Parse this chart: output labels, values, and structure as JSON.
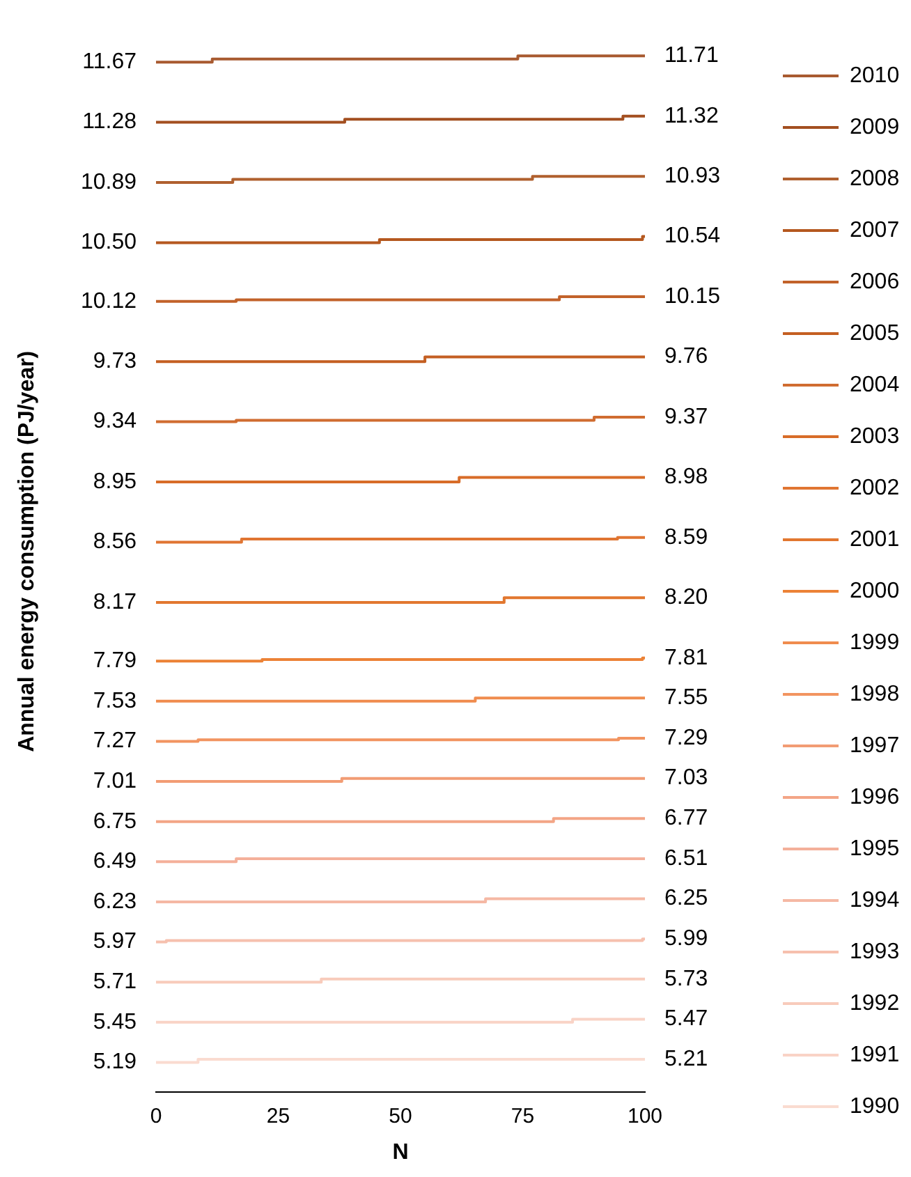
{
  "chart_data": {
    "type": "step",
    "xlabel": "N",
    "ylabel": "Annual energy consumption (PJ/year)",
    "xlim": [
      0,
      100
    ],
    "xticks": [
      0,
      25,
      50,
      75,
      100
    ],
    "tick_labels": "x",
    "grid": false,
    "legend": "right",
    "marker": "none",
    "series": [
      {
        "name": "2010",
        "color": "#a85a30",
        "x": [
          0,
          11.5,
          74,
          100
        ],
        "values": [
          11.67,
          11.69,
          11.71,
          11.71
        ],
        "value_labels": [
          "11.67",
          null,
          null,
          "11.71"
        ]
      },
      {
        "name": "2009",
        "color": "#a34f20",
        "x": [
          0,
          38.6,
          95.5,
          100
        ],
        "values": [
          11.28,
          11.3,
          11.32,
          11.32
        ],
        "value_labels": [
          "11.28",
          null,
          null,
          "11.32"
        ]
      },
      {
        "name": "2008",
        "color": "#b0602e",
        "x": [
          0,
          15.7,
          77,
          100
        ],
        "values": [
          10.89,
          10.91,
          10.93,
          10.93
        ],
        "value_labels": [
          "10.89",
          null,
          null,
          "10.93"
        ]
      },
      {
        "name": "2007",
        "color": "#b5581f",
        "x": [
          0,
          45.7,
          99.5,
          100
        ],
        "values": [
          10.5,
          10.52,
          10.54,
          10.54
        ],
        "value_labels": [
          "10.50",
          null,
          null,
          "10.54"
        ]
      },
      {
        "name": "2006",
        "color": "#c2622a",
        "x": [
          0,
          16.4,
          82.5,
          100
        ],
        "values": [
          10.12,
          10.13,
          10.15,
          10.15
        ],
        "value_labels": [
          "10.12",
          null,
          null,
          "10.15"
        ]
      },
      {
        "name": "2005",
        "color": "#c45f22",
        "x": [
          0,
          55,
          100
        ],
        "values": [
          9.73,
          9.76,
          9.76
        ],
        "value_labels": [
          "9.73",
          null,
          "9.76"
        ]
      },
      {
        "name": "2004",
        "color": "#d06c30",
        "x": [
          0,
          16.4,
          89.6,
          100
        ],
        "values": [
          9.34,
          9.35,
          9.37,
          9.37
        ],
        "value_labels": [
          "9.34",
          null,
          null,
          "9.37"
        ]
      },
      {
        "name": "2003",
        "color": "#d86c28",
        "x": [
          0,
          62,
          100
        ],
        "values": [
          8.95,
          8.98,
          8.98
        ],
        "value_labels": [
          "8.95",
          null,
          "8.98"
        ]
      },
      {
        "name": "2002",
        "color": "#e07532",
        "x": [
          0,
          17.5,
          94.4,
          100
        ],
        "values": [
          8.56,
          8.58,
          8.59,
          8.59
        ],
        "value_labels": [
          "8.56",
          null,
          null,
          "8.59"
        ]
      },
      {
        "name": "2001",
        "color": "#e2772f",
        "x": [
          0,
          71.2,
          100
        ],
        "values": [
          8.17,
          8.2,
          8.2
        ],
        "value_labels": [
          "8.17",
          null,
          "8.20"
        ]
      },
      {
        "name": "2000",
        "color": "#ec8236",
        "x": [
          0,
          21.7,
          99.5,
          100
        ],
        "values": [
          7.79,
          7.8,
          7.81,
          7.81
        ],
        "value_labels": [
          "7.79",
          null,
          null,
          "7.81"
        ]
      },
      {
        "name": "1999",
        "color": "#f08c4e",
        "x": [
          0,
          65.3,
          100
        ],
        "values": [
          7.53,
          7.55,
          7.55
        ],
        "value_labels": [
          "7.53",
          null,
          "7.55"
        ]
      },
      {
        "name": "1998",
        "color": "#f29460",
        "x": [
          0,
          8.6,
          94.6,
          100
        ],
        "values": [
          7.27,
          7.28,
          7.29,
          7.29
        ],
        "value_labels": [
          "7.27",
          null,
          null,
          "7.29"
        ]
      },
      {
        "name": "1997",
        "color": "#f29c74",
        "x": [
          0,
          38,
          100
        ],
        "values": [
          7.01,
          7.03,
          7.03
        ],
        "value_labels": [
          "7.01",
          null,
          "7.03"
        ]
      },
      {
        "name": "1996",
        "color": "#f3a586",
        "x": [
          0,
          81.3,
          100
        ],
        "values": [
          6.75,
          6.77,
          6.77
        ],
        "value_labels": [
          "6.75",
          null,
          "6.77"
        ]
      },
      {
        "name": "1995",
        "color": "#f4b09a",
        "x": [
          0,
          16.4,
          100
        ],
        "values": [
          6.49,
          6.51,
          6.51
        ],
        "value_labels": [
          "6.49",
          null,
          "6.51"
        ]
      },
      {
        "name": "1994",
        "color": "#f5b8a4",
        "x": [
          0,
          67.4,
          100
        ],
        "values": [
          6.23,
          6.25,
          6.25
        ],
        "value_labels": [
          "6.23",
          null,
          "6.25"
        ]
      },
      {
        "name": "1993",
        "color": "#f6c0ae",
        "x": [
          0,
          2.1,
          99.5,
          100
        ],
        "values": [
          5.97,
          5.98,
          5.99,
          5.99
        ],
        "value_labels": [
          "5.97",
          null,
          null,
          "5.99"
        ]
      },
      {
        "name": "1992",
        "color": "#f8cbbb",
        "x": [
          0,
          33.8,
          100
        ],
        "values": [
          5.71,
          5.73,
          5.73
        ],
        "value_labels": [
          "5.71",
          null,
          "5.73"
        ]
      },
      {
        "name": "1991",
        "color": "#f9d3c6",
        "x": [
          0,
          85.2,
          100
        ],
        "values": [
          5.45,
          5.47,
          5.47
        ],
        "value_labels": [
          "5.45",
          null,
          "5.47"
        ]
      },
      {
        "name": "1990",
        "color": "#fadbd0",
        "x": [
          0,
          8.6,
          100
        ],
        "values": [
          5.19,
          5.21,
          5.21
        ],
        "value_labels": [
          "5.19",
          null,
          "5.21"
        ]
      }
    ]
  }
}
